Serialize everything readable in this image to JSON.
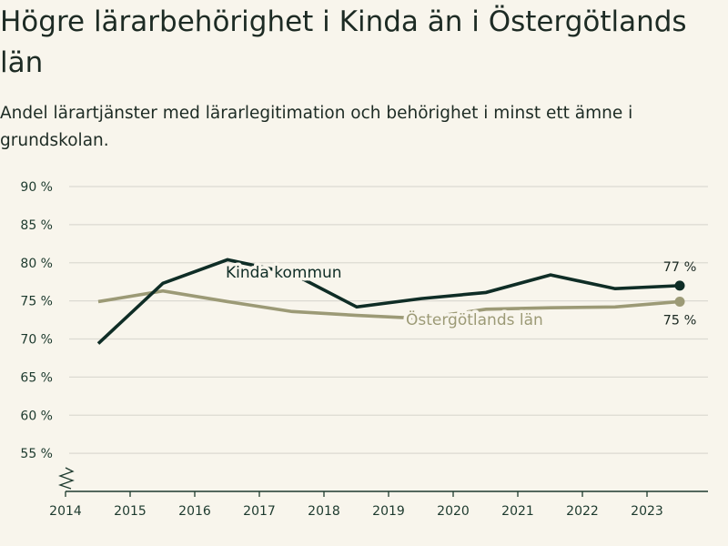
{
  "header": {
    "title": "Högre lärarbehörighet i Kinda än i Östergötlands län",
    "subtitle": "Andel lärartjänster med lärarlegitimation och behörighet i minst ett ämne i grundskolan."
  },
  "colors": {
    "background": "#f8f5ec",
    "kinda": "#0f2d26",
    "lan": "#9c9a76",
    "grid": "#dcdad2",
    "axis": "#1d3a2e"
  },
  "chart_data": {
    "type": "line",
    "title": "Högre lärarbehörighet i Kinda än i Östergötlands län",
    "subtitle": "Andel lärartjänster med lärarlegitimation och behörighet i minst ett ämne i grundskolan.",
    "x": [
      2014,
      2015,
      2016,
      2017,
      2018,
      2019,
      2020,
      2021,
      2022,
      2023
    ],
    "x_tick_labels": [
      "2014",
      "2015",
      "2016",
      "2017",
      "2018",
      "2019",
      "2020",
      "2021",
      "2022",
      "2023"
    ],
    "y_ticks": [
      55,
      60,
      65,
      70,
      75,
      80,
      85,
      90
    ],
    "y_tick_labels": [
      "55 %",
      "60 %",
      "65 %",
      "70 %",
      "75 %",
      "80 %",
      "85 %",
      "90 %"
    ],
    "ylim": [
      50,
      90
    ],
    "y_axis_break": true,
    "grid": true,
    "series": [
      {
        "name": "Kinda kommun",
        "values": [
          69.4,
          77.3,
          80.4,
          78.6,
          74.2,
          75.3,
          76.1,
          78.4,
          76.6,
          77.0
        ],
        "end_label": "77 %"
      },
      {
        "name": "Östergötlands län",
        "values": [
          74.9,
          76.3,
          74.9,
          73.6,
          73.1,
          72.7,
          73.9,
          74.1,
          74.2,
          74.9
        ],
        "end_label": "75 %"
      }
    ]
  }
}
